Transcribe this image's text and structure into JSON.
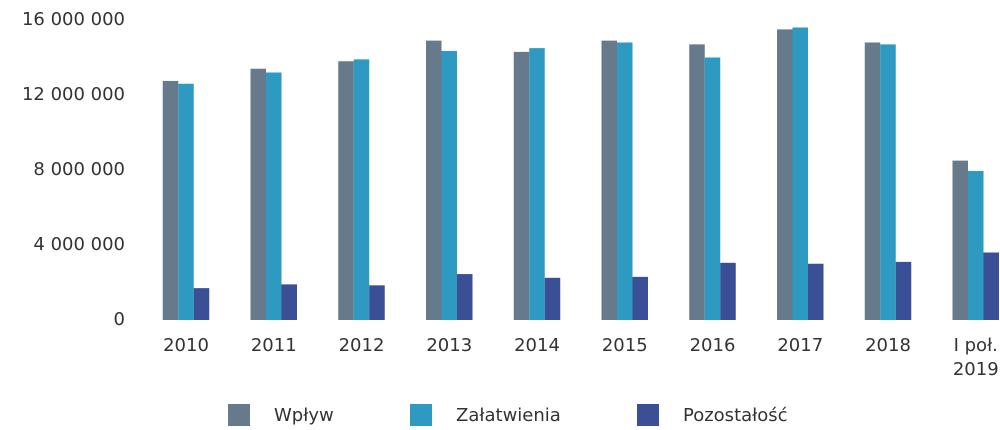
{
  "chart_data": {
    "type": "bar",
    "categories": [
      "2010",
      "2011",
      "2012",
      "2013",
      "2014",
      "2015",
      "2016",
      "2017",
      "2018",
      "I poł. 2019"
    ],
    "series": [
      {
        "name": "Wpływ",
        "color": "#667a8c",
        "values": [
          12750000,
          13400000,
          13800000,
          14900000,
          14300000,
          14900000,
          14700000,
          15500000,
          14800000,
          8500000
        ]
      },
      {
        "name": "Załatwienia",
        "color": "#2e9ac1",
        "values": [
          12600000,
          13200000,
          13900000,
          14350000,
          14500000,
          14800000,
          14000000,
          15600000,
          14700000,
          7950000
        ]
      },
      {
        "name": "Pozostałość",
        "color": "#3b4f96",
        "values": [
          1700000,
          1900000,
          1850000,
          2450000,
          2250000,
          2300000,
          3050000,
          3000000,
          3100000,
          3600000
        ]
      }
    ],
    "ylim": [
      0,
      16000000
    ],
    "yticks": [
      0,
      {
        "value": 4000000,
        "label": "4 000 000"
      },
      {
        "value": 8000000,
        "label": "8 000 000"
      },
      {
        "value": 12000000,
        "label": "12 000 000"
      },
      {
        "value": 16000000,
        "label": "16 000 000"
      }
    ],
    "grid": false,
    "legend": "bottom"
  }
}
